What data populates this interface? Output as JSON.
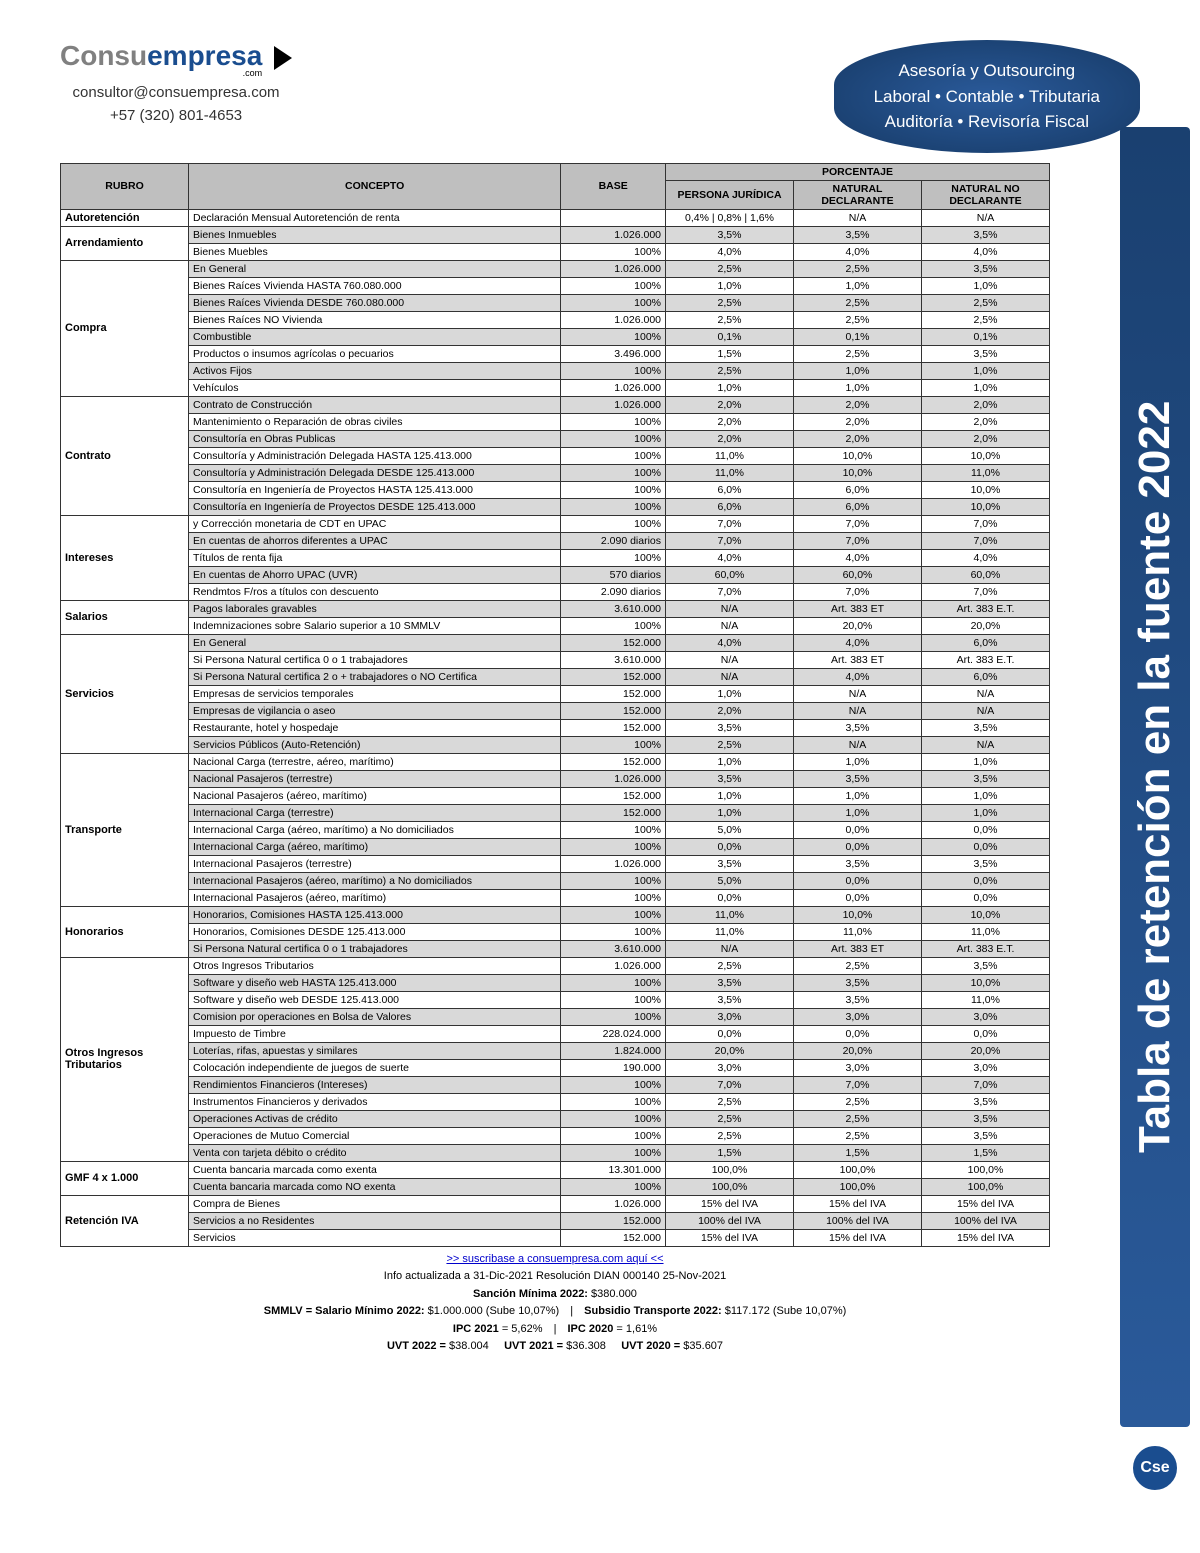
{
  "logo": {
    "part1": "Consu",
    "part2": "empresa",
    "sub": ".com"
  },
  "contact": {
    "email": "consultor@consuempresa.com",
    "phone": "+57 (320) 801-4653"
  },
  "tagline": {
    "l1": "Asesoría y Outsourcing",
    "l2": "Laboral • Contable • Tributaria",
    "l3": "Auditoría • Revisoría Fiscal"
  },
  "side_title": "Tabla de retención en la fuente 2022",
  "table": {
    "headers": {
      "rubro": "RUBRO",
      "concepto": "CONCEPTO",
      "base": "BASE",
      "porcentaje": "PORCENTAJE",
      "pj": "PERSONA JURÍDICA",
      "nd": "NATURAL DECLARANTE",
      "nnd": "NATURAL NO DECLARANTE"
    },
    "groups": [
      {
        "rubro": "Autoretención",
        "rows": [
          {
            "c": "Declaración Mensual Autoretención de renta",
            "b": "",
            "p1": "0,4%  |  0,8%  |  1,6%",
            "p2": "N/A",
            "p3": "N/A",
            "shade": false
          }
        ]
      },
      {
        "rubro": "Arrendamiento",
        "rows": [
          {
            "c": "Bienes Inmuebles",
            "b": "1.026.000",
            "p1": "3,5%",
            "p2": "3,5%",
            "p3": "3,5%",
            "shade": true
          },
          {
            "c": "Bienes Muebles",
            "b": "100%",
            "p1": "4,0%",
            "p2": "4,0%",
            "p3": "4,0%",
            "shade": false
          }
        ]
      },
      {
        "rubro": "Compra",
        "rows": [
          {
            "c": "En General",
            "b": "1.026.000",
            "p1": "2,5%",
            "p2": "2,5%",
            "p3": "3,5%",
            "shade": true
          },
          {
            "c": "Bienes Raíces Vivienda HASTA 760.080.000",
            "b": "100%",
            "p1": "1,0%",
            "p2": "1,0%",
            "p3": "1,0%",
            "shade": false
          },
          {
            "c": "Bienes Raíces Vivienda DESDE 760.080.000",
            "b": "100%",
            "p1": "2,5%",
            "p2": "2,5%",
            "p3": "2,5%",
            "shade": true
          },
          {
            "c": "Bienes Raíces NO Vivienda",
            "b": "1.026.000",
            "p1": "2,5%",
            "p2": "2,5%",
            "p3": "2,5%",
            "shade": false
          },
          {
            "c": "Combustible",
            "b": "100%",
            "p1": "0,1%",
            "p2": "0,1%",
            "p3": "0,1%",
            "shade": true
          },
          {
            "c": "Productos o insumos agrícolas o pecuarios",
            "b": "3.496.000",
            "p1": "1,5%",
            "p2": "2,5%",
            "p3": "3,5%",
            "shade": false
          },
          {
            "c": "Activos Fijos",
            "b": "100%",
            "p1": "2,5%",
            "p2": "1,0%",
            "p3": "1,0%",
            "shade": true
          },
          {
            "c": "Vehículos",
            "b": "1.026.000",
            "p1": "1,0%",
            "p2": "1,0%",
            "p3": "1,0%",
            "shade": false
          }
        ]
      },
      {
        "rubro": "Contrato",
        "rows": [
          {
            "c": "Contrato de Construcción",
            "b": "1.026.000",
            "p1": "2,0%",
            "p2": "2,0%",
            "p3": "2,0%",
            "shade": true
          },
          {
            "c": "Mantenimiento o Reparación de obras civiles",
            "b": "100%",
            "p1": "2,0%",
            "p2": "2,0%",
            "p3": "2,0%",
            "shade": false
          },
          {
            "c": "Consultoría en Obras Publicas",
            "b": "100%",
            "p1": "2,0%",
            "p2": "2,0%",
            "p3": "2,0%",
            "shade": true
          },
          {
            "c": "Consultoría y Administración Delegada  HASTA 125.413.000",
            "b": "100%",
            "p1": "11,0%",
            "p2": "10,0%",
            "p3": "10,0%",
            "shade": false
          },
          {
            "c": "Consultoría y Administración Delegada  DESDE 125.413.000",
            "b": "100%",
            "p1": "11,0%",
            "p2": "10,0%",
            "p3": "11,0%",
            "shade": true
          },
          {
            "c": "Consultoría en Ingeniería de Proyectos HASTA 125.413.000",
            "b": "100%",
            "p1": "6,0%",
            "p2": "6,0%",
            "p3": "10,0%",
            "shade": false
          },
          {
            "c": "Consultoría en Ingeniería de Proyectos DESDE 125.413.000",
            "b": "100%",
            "p1": "6,0%",
            "p2": "6,0%",
            "p3": "10,0%",
            "shade": true
          }
        ]
      },
      {
        "rubro": "Intereses",
        "rows": [
          {
            "c": "y Corrección monetaria de CDT en UPAC",
            "b": "100%",
            "p1": "7,0%",
            "p2": "7,0%",
            "p3": "7,0%",
            "shade": false
          },
          {
            "c": "En cuentas de ahorros diferentes a UPAC",
            "b": "2.090 diarios",
            "p1": "7,0%",
            "p2": "7,0%",
            "p3": "7,0%",
            "shade": true
          },
          {
            "c": "Títulos de renta fija",
            "b": "100%",
            "p1": "4,0%",
            "p2": "4,0%",
            "p3": "4,0%",
            "shade": false
          },
          {
            "c": "En cuentas de Ahorro UPAC (UVR)",
            "b": "570 diarios",
            "p1": "60,0%",
            "p2": "60,0%",
            "p3": "60,0%",
            "shade": true
          },
          {
            "c": "Rendmtos F/ros a títulos con descuento",
            "b": "2.090 diarios",
            "p1": "7,0%",
            "p2": "7,0%",
            "p3": "7,0%",
            "shade": false
          }
        ]
      },
      {
        "rubro": "Salarios",
        "rows": [
          {
            "c": "Pagos laborales gravables",
            "b": "3.610.000",
            "p1": "N/A",
            "p2": "Art. 383 ET",
            "p3": "Art. 383 E.T.",
            "shade": true
          },
          {
            "c": "Indemnizaciones sobre Salario superior a 10 SMMLV",
            "b": "100%",
            "p1": "N/A",
            "p2": "20,0%",
            "p3": "20,0%",
            "shade": false
          }
        ]
      },
      {
        "rubro": "Servicios",
        "rows": [
          {
            "c": "En General",
            "b": "152.000",
            "p1": "4,0%",
            "p2": "4,0%",
            "p3": "6,0%",
            "shade": true
          },
          {
            "c": "Si Persona Natural certifica 0 o 1 trabajadores",
            "b": "3.610.000",
            "p1": "N/A",
            "p2": "Art. 383 ET",
            "p3": "Art. 383 E.T.",
            "shade": false
          },
          {
            "c": "Si Persona Natural certifica 2 o + trabajadores o NO Certifica",
            "b": "152.000",
            "p1": "N/A",
            "p2": "4,0%",
            "p3": "6,0%",
            "shade": true
          },
          {
            "c": "Empresas de servicios temporales",
            "b": "152.000",
            "p1": "1,0%",
            "p2": "N/A",
            "p3": "N/A",
            "shade": false
          },
          {
            "c": "Empresas de vigilancia o aseo",
            "b": "152.000",
            "p1": "2,0%",
            "p2": "N/A",
            "p3": "N/A",
            "shade": true
          },
          {
            "c": "Restaurante, hotel y hospedaje",
            "b": "152.000",
            "p1": "3,5%",
            "p2": "3,5%",
            "p3": "3,5%",
            "shade": false
          },
          {
            "c": "Servicios Públicos (Auto-Retención)",
            "b": "100%",
            "p1": "2,5%",
            "p2": "N/A",
            "p3": "N/A",
            "shade": true
          }
        ]
      },
      {
        "rubro": "Transporte",
        "rows": [
          {
            "c": "Nacional Carga (terrestre, aéreo, marítimo)",
            "b": "152.000",
            "p1": "1,0%",
            "p2": "1,0%",
            "p3": "1,0%",
            "shade": false
          },
          {
            "c": "Nacional Pasajeros (terrestre)",
            "b": "1.026.000",
            "p1": "3,5%",
            "p2": "3,5%",
            "p3": "3,5%",
            "shade": true
          },
          {
            "c": "Nacional Pasajeros (aéreo, marítimo)",
            "b": "152.000",
            "p1": "1,0%",
            "p2": "1,0%",
            "p3": "1,0%",
            "shade": false
          },
          {
            "c": "Internacional Carga (terrestre)",
            "b": "152.000",
            "p1": "1,0%",
            "p2": "1,0%",
            "p3": "1,0%",
            "shade": true
          },
          {
            "c": "Internacional Carga (aéreo, marítimo) a No domiciliados",
            "b": "100%",
            "p1": "5,0%",
            "p2": "0,0%",
            "p3": "0,0%",
            "shade": false
          },
          {
            "c": "Internacional Carga (aéreo, marítimo)",
            "b": "100%",
            "p1": "0,0%",
            "p2": "0,0%",
            "p3": "0,0%",
            "shade": true
          },
          {
            "c": "Internacional Pasajeros (terrestre)",
            "b": "1.026.000",
            "p1": "3,5%",
            "p2": "3,5%",
            "p3": "3,5%",
            "shade": false
          },
          {
            "c": "Internacional Pasajeros (aéreo, marítimo) a No domiciliados",
            "b": "100%",
            "p1": "5,0%",
            "p2": "0,0%",
            "p3": "0,0%",
            "shade": true
          },
          {
            "c": "Internacional Pasajeros (aéreo, marítimo)",
            "b": "100%",
            "p1": "0,0%",
            "p2": "0,0%",
            "p3": "0,0%",
            "shade": false
          }
        ]
      },
      {
        "rubro": "Honorarios",
        "rows": [
          {
            "c": "Honorarios, Comisiones HASTA 125.413.000",
            "b": "100%",
            "p1": "11,0%",
            "p2": "10,0%",
            "p3": "10,0%",
            "shade": true
          },
          {
            "c": "Honorarios, Comisiones DESDE 125.413.000",
            "b": "100%",
            "p1": "11,0%",
            "p2": "11,0%",
            "p3": "11,0%",
            "shade": false
          },
          {
            "c": "Si Persona Natural certifica 0 o 1 trabajadores",
            "b": "3.610.000",
            "p1": "N/A",
            "p2": "Art. 383 ET",
            "p3": "Art. 383 E.T.",
            "shade": true
          }
        ]
      },
      {
        "rubro": "Otros Ingresos Tributarios",
        "rows": [
          {
            "c": "Otros Ingresos Tributarios",
            "b": "1.026.000",
            "p1": "2,5%",
            "p2": "2,5%",
            "p3": "3,5%",
            "shade": false
          },
          {
            "c": "Software y diseño web HASTA 125.413.000",
            "b": "100%",
            "p1": "3,5%",
            "p2": "3,5%",
            "p3": "10,0%",
            "shade": true
          },
          {
            "c": "Software y diseño web DESDE 125.413.000",
            "b": "100%",
            "p1": "3,5%",
            "p2": "3,5%",
            "p3": "11,0%",
            "shade": false
          },
          {
            "c": "Comision por operaciones en Bolsa de Valores",
            "b": "100%",
            "p1": "3,0%",
            "p2": "3,0%",
            "p3": "3,0%",
            "shade": true
          },
          {
            "c": "Impuesto de Timbre",
            "b": "228.024.000",
            "p1": "0,0%",
            "p2": "0,0%",
            "p3": "0,0%",
            "shade": false
          },
          {
            "c": "Loterías, rifas, apuestas y similares",
            "b": "1.824.000",
            "p1": "20,0%",
            "p2": "20,0%",
            "p3": "20,0%",
            "shade": true
          },
          {
            "c": "Colocación independiente de juegos de suerte",
            "b": "190.000",
            "p1": "3,0%",
            "p2": "3,0%",
            "p3": "3,0%",
            "shade": false
          },
          {
            "c": "Rendimientos Financieros (Intereses)",
            "b": "100%",
            "p1": "7,0%",
            "p2": "7,0%",
            "p3": "7,0%",
            "shade": true
          },
          {
            "c": "Instrumentos Financieros y derivados",
            "b": "100%",
            "p1": "2,5%",
            "p2": "2,5%",
            "p3": "3,5%",
            "shade": false
          },
          {
            "c": "Operaciones Activas de crédito",
            "b": "100%",
            "p1": "2,5%",
            "p2": "2,5%",
            "p3": "3,5%",
            "shade": true
          },
          {
            "c": "Operaciones de Mutuo Comercial",
            "b": "100%",
            "p1": "2,5%",
            "p2": "2,5%",
            "p3": "3,5%",
            "shade": false
          },
          {
            "c": "Venta con tarjeta débito o crédito",
            "b": "100%",
            "p1": "1,5%",
            "p2": "1,5%",
            "p3": "1,5%",
            "shade": true
          }
        ]
      },
      {
        "rubro": "GMF 4 x 1.000",
        "rows": [
          {
            "c": "Cuenta bancaria marcada como exenta",
            "b": "13.301.000",
            "p1": "100,0%",
            "p2": "100,0%",
            "p3": "100,0%",
            "shade": false
          },
          {
            "c": "Cuenta bancaria marcada como NO exenta",
            "b": "100%",
            "p1": "100,0%",
            "p2": "100,0%",
            "p3": "100,0%",
            "shade": true
          }
        ]
      },
      {
        "rubro": "Retención IVA",
        "rows": [
          {
            "c": "Compra de Bienes",
            "b": "1.026.000",
            "p1": "15% del IVA",
            "p2": "15% del IVA",
            "p3": "15% del IVA",
            "shade": false
          },
          {
            "c": "Servicios a no Residentes",
            "b": "152.000",
            "p1": "100% del IVA",
            "p2": "100% del IVA",
            "p3": "100% del IVA",
            "shade": true
          },
          {
            "c": "Servicios",
            "b": "152.000",
            "p1": "15% del IVA",
            "p2": "15% del IVA",
            "p3": "15% del IVA",
            "shade": false
          }
        ]
      }
    ]
  },
  "footer": {
    "link": ">> suscribase a consuempresa.com aquí <<",
    "info": "Info actualizada a 31-Dic-2021 Resolución DIAN 000140 25-Nov-2021",
    "sancion_label": "Sanción Mínima 2022:",
    "sancion_val": "$380.000",
    "smmlv_label": "SMMLV = Salario Mínimo 2022:",
    "smmlv_val": "$1.000.000 (Sube 10,07%)",
    "subsidio_label": "Subsidio Transporte 2022:",
    "subsidio_val": "$117.172 (Sube 10,07%)",
    "ipc21_label": "IPC 2021",
    "ipc21_val": "= 5,62%",
    "ipc20_label": "IPC 2020",
    "ipc20_val": "= 1,61%",
    "uvt22_label": "UVT 2022 =",
    "uvt22_val": "$38.004",
    "uvt21_label": "UVT 2021 =",
    "uvt21_val": "$36.308",
    "uvt20_label": "UVT 2020 =",
    "uvt20_val": "$35.607"
  },
  "badge": "Cse"
}
